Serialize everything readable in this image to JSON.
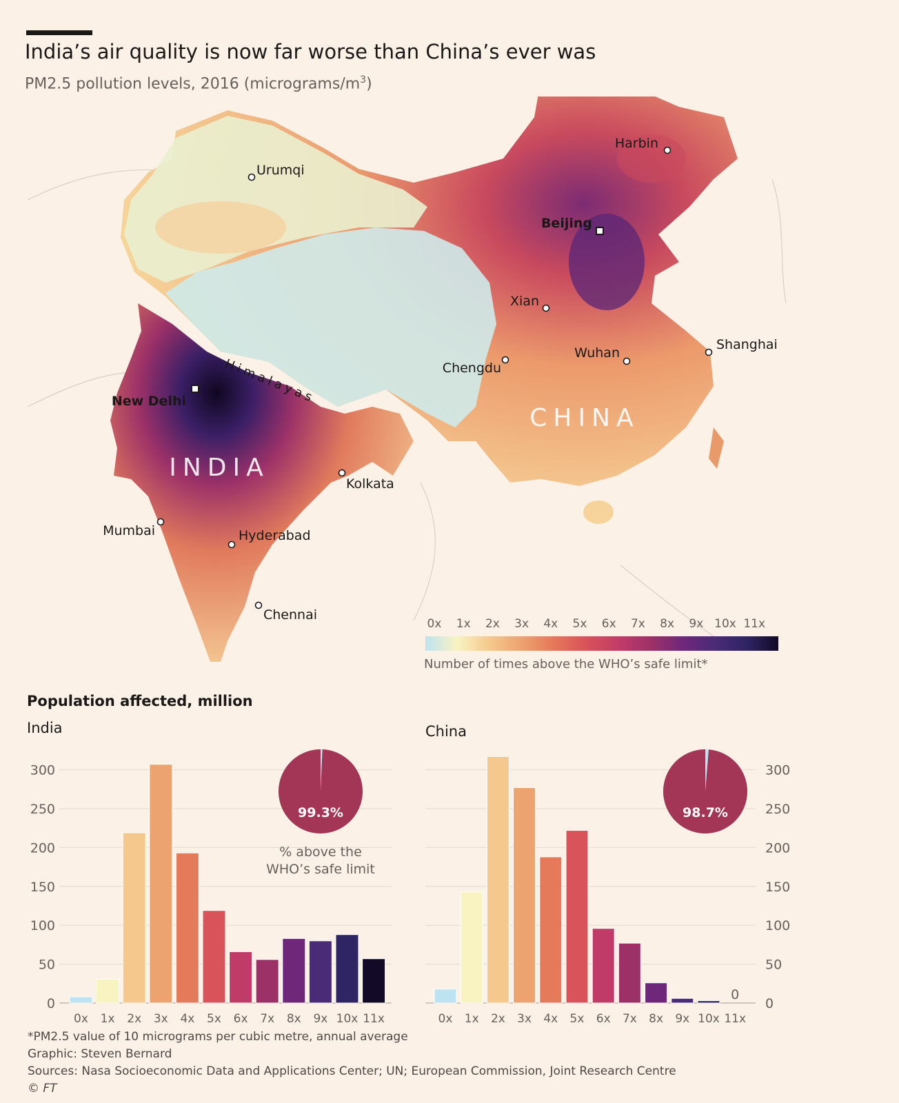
{
  "header": {
    "title": "India’s air quality is now far worse than China’s ever was",
    "subtitle_main": "PM2.5 pollution levels, 2016 (micrograms/m",
    "subtitle_sup": "3",
    "subtitle_end": ")"
  },
  "map": {
    "country_labels": {
      "india": "INDIA",
      "china": "CHINA",
      "himalayas": "Himalayas"
    },
    "cities": [
      {
        "name": "Harbin",
        "capital": false
      },
      {
        "name": "Urumqi",
        "capital": false
      },
      {
        "name": "Beijing",
        "capital": true
      },
      {
        "name": "Xian",
        "capital": false
      },
      {
        "name": "Shanghai",
        "capital": false
      },
      {
        "name": "Wuhan",
        "capital": false
      },
      {
        "name": "Chengdu",
        "capital": false
      },
      {
        "name": "New Delhi",
        "capital": true
      },
      {
        "name": "Kolkata",
        "capital": false
      },
      {
        "name": "Mumbai",
        "capital": false
      },
      {
        "name": "Hyderabad",
        "capital": false
      },
      {
        "name": "Chennai",
        "capital": false
      }
    ],
    "legend": {
      "ticks": [
        "0x",
        "1x",
        "2x",
        "3x",
        "4x",
        "5x",
        "6x",
        "7x",
        "8x",
        "9x",
        "10x",
        "11x"
      ],
      "caption": "Number of times above the WHO’s safe limit*"
    }
  },
  "colors": {
    "scale": [
      "#bde3f0",
      "#f9f3c2",
      "#f5c98d",
      "#eda36f",
      "#e57a5a",
      "#d9545a",
      "#c13b68",
      "#9c3168",
      "#6f277a",
      "#4a2b78",
      "#2f2464",
      "#120a26"
    ],
    "pie_fill": "#a33557",
    "pie_remainder": "#bde3f0",
    "grid": "#e3d9ce"
  },
  "chart_data": [
    {
      "type": "bar",
      "title": "India",
      "section_title": "Population affected, million",
      "categories": [
        "0x",
        "1x",
        "2x",
        "3x",
        "4x",
        "5x",
        "6x",
        "7x",
        "8x",
        "9x",
        "10x",
        "11x"
      ],
      "values": [
        8,
        31,
        219,
        307,
        193,
        119,
        66,
        56,
        83,
        80,
        88,
        57
      ],
      "yticks": [
        0,
        50,
        100,
        150,
        200,
        250,
        300
      ],
      "ylim": [
        0,
        320
      ],
      "pie": {
        "percent": 99.3,
        "label": "99.3%",
        "caption_line1": "% above the",
        "caption_line2": "WHO’s safe limit"
      }
    },
    {
      "type": "bar",
      "title": "China",
      "categories": [
        "0x",
        "1x",
        "2x",
        "3x",
        "4x",
        "5x",
        "6x",
        "7x",
        "8x",
        "9x",
        "10x",
        "11x"
      ],
      "values": [
        18,
        143,
        317,
        277,
        188,
        222,
        96,
        77,
        26,
        6,
        3,
        0
      ],
      "zero_label": "0",
      "yticks": [
        0,
        50,
        100,
        150,
        200,
        250,
        300
      ],
      "ylim": [
        0,
        320
      ],
      "pie": {
        "percent": 98.7,
        "label": "98.7%"
      }
    }
  ],
  "footer": {
    "note": "*PM2.5 value of 10 micrograms per cubic metre, annual average",
    "graphic": "Graphic: Steven Bernard",
    "sources": "Sources: Nasa Socioeconomic Data and Applications Center; UN; European Commission, Joint Research Centre",
    "copyright": "© FT"
  }
}
